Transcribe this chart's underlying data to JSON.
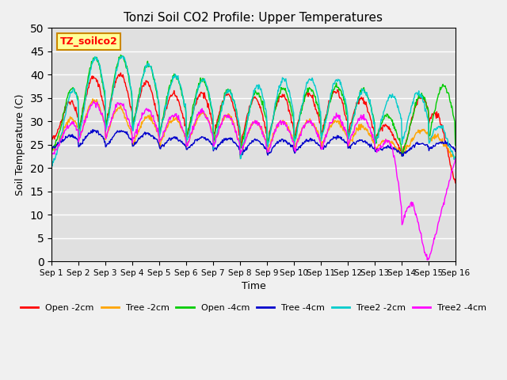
{
  "title": "Tonzi Soil CO2 Profile: Upper Temperatures",
  "xlabel": "Time",
  "ylabel": "Soil Temperature (C)",
  "ylim": [
    0,
    50
  ],
  "yticks": [
    0,
    5,
    10,
    15,
    20,
    25,
    30,
    35,
    40,
    45,
    50
  ],
  "xlim": [
    0,
    15
  ],
  "n_days": 15,
  "xtick_labels": [
    "Sep 1",
    "Sep 2",
    "Sep 3",
    "Sep 4",
    "Sep 5",
    "Sep 6",
    "Sep 7",
    "Sep 8",
    "Sep 9",
    "Sep 10",
    "Sep 11",
    "Sep 12",
    "Sep 13",
    "Sep 14",
    "Sep 15",
    "Sep 16"
  ],
  "legend_entries": [
    "Open -2cm",
    "Tree -2cm",
    "Open -4cm",
    "Tree -4cm",
    "Tree2 -2cm",
    "Tree2 -4cm"
  ],
  "legend_colors": [
    "#ff0000",
    "#ffa500",
    "#00cc00",
    "#0000cc",
    "#00cccc",
    "#ff00ff"
  ],
  "annotation_label": "TZ_soilco2",
  "annotation_box_facecolor": "#ffff99",
  "annotation_box_edgecolor": "#cc8800",
  "plot_bg_color": "#e0e0e0",
  "fig_bg_color": "#f0f0f0",
  "grid_color": "#ffffff"
}
